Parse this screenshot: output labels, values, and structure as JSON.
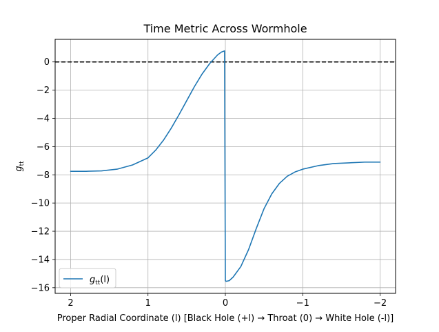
{
  "chart_data": {
    "type": "line",
    "title": "Time Metric Across Wormhole",
    "xlabel": "Proper Radial Coordinate (l) [Black Hole (+l) → Throat (0) → White Hole (-l)]",
    "ylabel": {
      "base": "g",
      "sub": "tt"
    },
    "xlim": [
      2.2,
      -2.2
    ],
    "ylim": [
      -16.4,
      1.6
    ],
    "x_inverted": true,
    "grid": true,
    "xticks": [
      2,
      1,
      0,
      -1,
      -2
    ],
    "xtick_labels": [
      "2",
      "1",
      "0",
      "−1",
      "−2"
    ],
    "yticks": [
      0,
      -2,
      -4,
      -6,
      -8,
      -10,
      -12,
      -14,
      -16
    ],
    "ytick_labels": [
      "0",
      "−2",
      "−4",
      "−6",
      "−8",
      "−10",
      "−12",
      "−14",
      "−16"
    ],
    "reference_line": {
      "y": 0,
      "style": "dashed",
      "color": "#000000"
    },
    "legend": {
      "position": "lower-left",
      "entries": [
        {
          "base": "g",
          "sub": "tt",
          "suffix": "(l)"
        }
      ]
    },
    "series": [
      {
        "color": "#1f77b4",
        "x": [
          2.0,
          1.8,
          1.6,
          1.4,
          1.2,
          1.0,
          0.9,
          0.8,
          0.7,
          0.6,
          0.5,
          0.4,
          0.3,
          0.2,
          0.1,
          0.05,
          0.01,
          0.0,
          -0.01,
          -0.05,
          -0.1,
          -0.2,
          -0.3,
          -0.4,
          -0.5,
          -0.6,
          -0.7,
          -0.8,
          -0.9,
          -1.0,
          -1.2,
          -1.4,
          -1.6,
          -1.8,
          -2.0
        ],
        "y": [
          -7.75,
          -7.75,
          -7.72,
          -7.6,
          -7.3,
          -6.8,
          -6.25,
          -5.55,
          -4.7,
          -3.75,
          -2.75,
          -1.75,
          -0.85,
          -0.1,
          0.5,
          0.7,
          0.78,
          -15.5,
          -15.55,
          -15.5,
          -15.25,
          -14.5,
          -13.3,
          -11.8,
          -10.4,
          -9.35,
          -8.6,
          -8.1,
          -7.8,
          -7.6,
          -7.35,
          -7.2,
          -7.15,
          -7.1,
          -7.1
        ]
      }
    ]
  }
}
